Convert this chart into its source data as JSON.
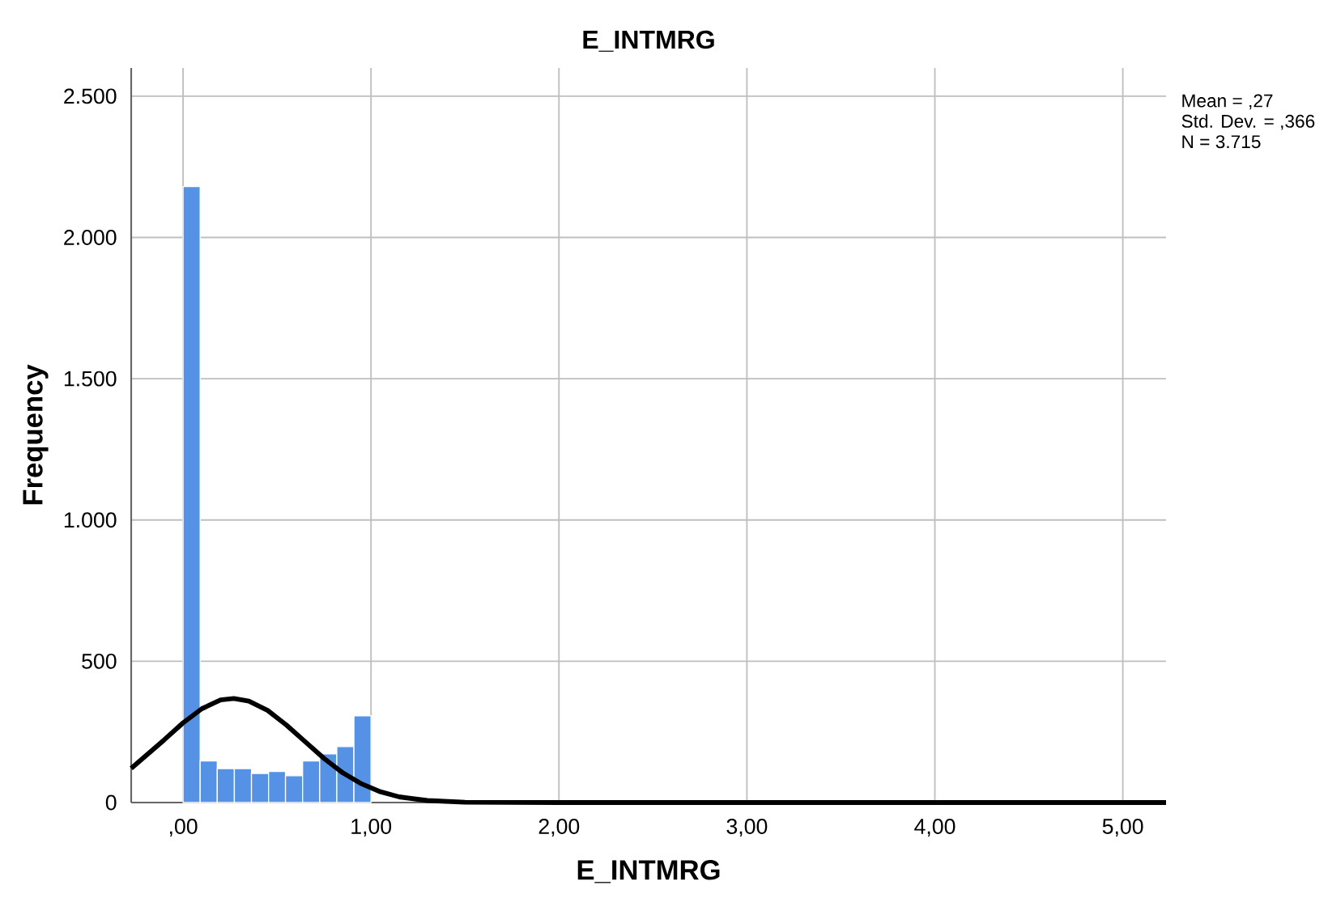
{
  "chart_data": {
    "type": "histogram",
    "title": "E_INTMRG",
    "xlabel": "E_INTMRG",
    "ylabel": "Frequency",
    "bins": [
      0,
      0.091,
      0.182,
      0.273,
      0.364,
      0.455,
      0.545,
      0.636,
      0.727,
      0.818,
      0.909,
      1.0
    ],
    "values": [
      2180,
      147,
      120,
      120,
      103,
      110,
      95,
      147,
      172,
      198,
      307
    ],
    "color": "#5592e6",
    "series": [
      {
        "type": "line",
        "color": "#000000",
        "x": [
          -0.276,
          -0.1,
          0.0,
          0.1,
          0.2,
          0.27,
          0.35,
          0.45,
          0.55,
          0.65,
          0.75,
          0.85,
          0.95,
          1.05,
          1.15,
          1.3,
          1.5,
          2.0,
          5.23
        ],
        "values": [
          121,
          222,
          282,
          332,
          363,
          368,
          359,
          326,
          274,
          215,
          156,
          105,
          66,
          38,
          20,
          7,
          1,
          0,
          0
        ]
      }
    ],
    "xlim": [
      -0.276,
      5.23
    ],
    "ylim": [
      0,
      2600
    ],
    "xticks": [
      {
        "value": 0,
        "label": ",00"
      },
      {
        "value": 1,
        "label": "1,00"
      },
      {
        "value": 2,
        "label": "2,00"
      },
      {
        "value": 3,
        "label": "3,00"
      },
      {
        "value": 4,
        "label": "4,00"
      },
      {
        "value": 5,
        "label": "5,00"
      }
    ],
    "yticks": [
      0,
      {
        "value": 500,
        "label": "500"
      },
      {
        "value": 1000,
        "label": "1.000"
      },
      {
        "value": 1500,
        "label": "1.500"
      },
      {
        "value": 2000,
        "label": "2.000"
      },
      {
        "value": 2500,
        "label": "2.500"
      }
    ],
    "grid": true,
    "annotations": [
      "Mean = ,27",
      "Std. Dev. = ,366",
      "N = 3.715"
    ]
  }
}
